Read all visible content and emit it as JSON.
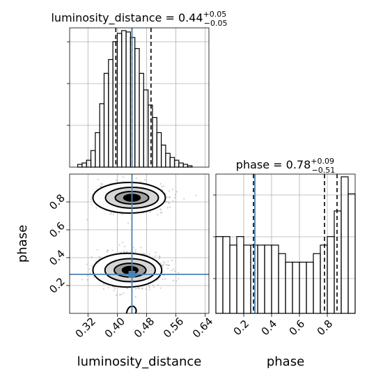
{
  "chart_data": [
    {
      "type": "histogram",
      "panel": "luminosity_distance marginal",
      "parameter": "luminosity_distance",
      "title": {
        "name": "luminosity_distance",
        "median": "0.44",
        "plus": "+0.05",
        "minus": "−0.05"
      },
      "xlim": [
        0.27,
        0.65
      ],
      "bins": [
        0.28,
        0.292,
        0.304,
        0.316,
        0.328,
        0.34,
        0.352,
        0.364,
        0.376,
        0.388,
        0.4,
        0.412,
        0.424,
        0.436,
        0.448,
        0.46,
        0.472,
        0.484,
        0.496,
        0.508,
        0.52,
        0.532,
        0.544,
        0.556,
        0.568,
        0.58,
        0.592,
        0.604,
        0.616,
        0.628,
        0.64
      ],
      "counts": [
        0,
        2,
        3,
        5,
        12,
        25,
        46,
        68,
        78,
        91,
        97,
        99,
        98,
        94,
        86,
        68,
        56,
        45,
        36,
        25,
        16,
        10,
        7,
        5,
        3,
        2,
        1,
        0,
        0,
        0
      ],
      "quantile_lines": [
        0.396,
        0.44,
        0.492
      ],
      "truth": 0.44,
      "grid": true
    },
    {
      "type": "scatter",
      "panel": "2D posterior luminosity_distance vs phase",
      "x_parameter": "luminosity_distance",
      "y_parameter": "phase",
      "xlabel": "luminosity_distance",
      "ylabel": "phase",
      "xlim": [
        0.27,
        0.65
      ],
      "ylim": [
        0.0,
        1.0
      ],
      "xticks": [
        "0.32",
        "0.40",
        "0.48",
        "0.56",
        "0.64"
      ],
      "yticks": [
        "0.2",
        "0.4",
        "0.6",
        "0.8"
      ],
      "modes": [
        {
          "x": 0.44,
          "y": 0.83
        },
        {
          "x": 0.435,
          "y": 0.31
        }
      ],
      "truth": {
        "x": 0.44,
        "y": 0.28
      },
      "grid": true
    },
    {
      "type": "histogram",
      "panel": "phase marginal",
      "parameter": "phase",
      "title": {
        "name": "phase",
        "median": "0.78",
        "plus": "+0.09",
        "minus": "−0.51"
      },
      "xlabel": "phase",
      "xlim": [
        0.0,
        1.0
      ],
      "xticks": [
        "0.2",
        "0.4",
        "0.6",
        "0.8"
      ],
      "bins": [
        0.0,
        0.05,
        0.1,
        0.15,
        0.2,
        0.25,
        0.3,
        0.35,
        0.4,
        0.45,
        0.5,
        0.55,
        0.6,
        0.65,
        0.7,
        0.75,
        0.8,
        0.85,
        0.9,
        0.95,
        1.0
      ],
      "counts": [
        0.09,
        0.09,
        0.08,
        0.09,
        0.08,
        0.08,
        0.08,
        0.08,
        0.08,
        0.07,
        0.06,
        0.06,
        0.06,
        0.06,
        0.07,
        0.08,
        0.09,
        0.12,
        0.16,
        0.14
      ],
      "quantile_lines": [
        0.27,
        0.78,
        0.87
      ],
      "truth": 0.28,
      "grid": true
    }
  ]
}
